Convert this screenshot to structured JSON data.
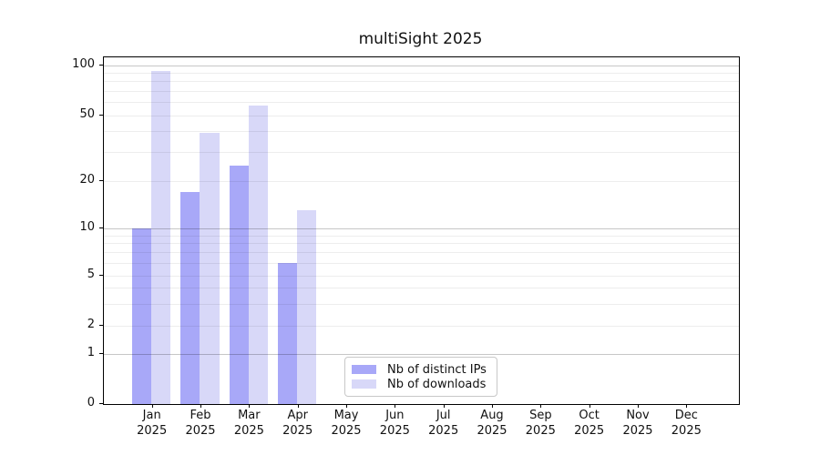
{
  "chart_data": {
    "type": "bar",
    "title": "multiSight 2025",
    "categories": [
      "Jan",
      "Feb",
      "Mar",
      "Apr",
      "May",
      "Jun",
      "Jul",
      "Aug",
      "Sep",
      "Oct",
      "Nov",
      "Dec"
    ],
    "category_year": "2025",
    "series": [
      {
        "name": "Nb of distinct IPs",
        "color": "#a8a8f8",
        "values": [
          10,
          17,
          25,
          6,
          0,
          0,
          0,
          0,
          0,
          0,
          0,
          0
        ]
      },
      {
        "name": "Nb of downloads",
        "color": "#d8d8f8",
        "values": [
          92,
          39,
          57,
          13,
          0,
          0,
          0,
          0,
          0,
          0,
          0,
          0
        ]
      }
    ],
    "yaxis": {
      "scale": "log-like",
      "ticks": [
        0,
        1,
        2,
        5,
        10,
        20,
        50,
        100
      ],
      "minor_ticks": [
        3,
        4,
        6,
        7,
        8,
        9,
        30,
        40,
        60,
        70,
        80,
        90
      ],
      "range": [
        0,
        100
      ]
    },
    "xaxis": {
      "label_format": "month over year"
    },
    "grid": true,
    "legend_position": "lower center"
  }
}
